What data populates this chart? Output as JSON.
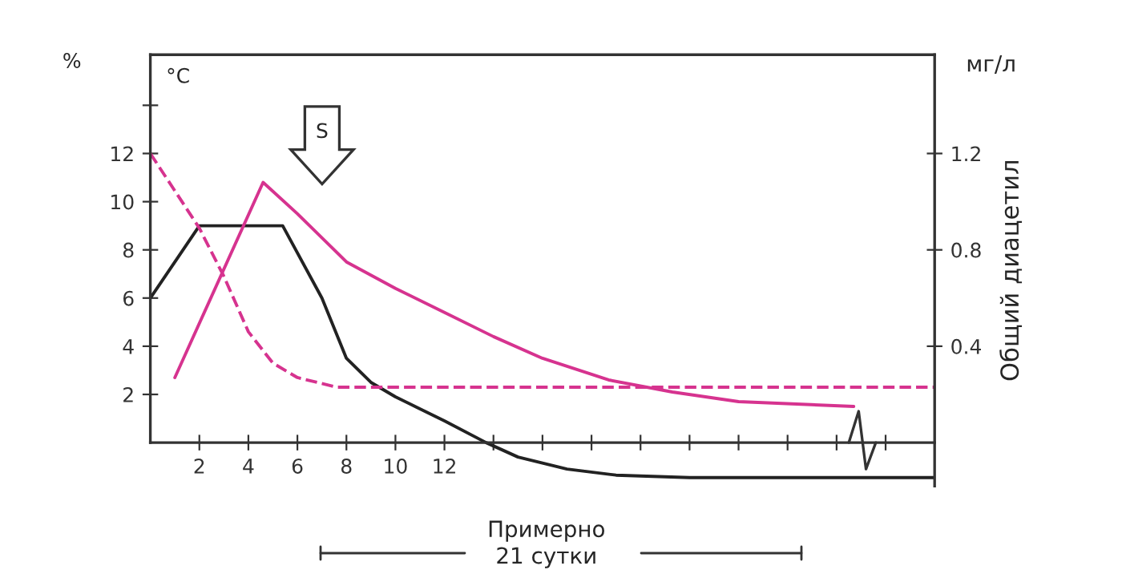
{
  "chart_data": {
    "type": "line",
    "ylabel": "%",
    "y2label": "Общий диацетил",
    "annotations": [
      "°C",
      "мг/л",
      "S",
      "Примерно\n21 сутки"
    ],
    "series": [
      {
        "x": [
          0,
          2,
          5.4,
          7,
          8,
          9,
          10,
          12,
          13.7,
          15,
          17,
          19,
          22,
          32
        ],
        "values": [
          6,
          9,
          9,
          6,
          3.5,
          2.5,
          1.9,
          0.9,
          0,
          -0.6,
          -1.1,
          -1.35,
          -1.45,
          -1.45
        ],
        "color": "#222222",
        "line_style": "solid"
      },
      {
        "x": [
          1,
          4.6,
          6,
          8,
          10,
          12,
          14,
          16,
          18.7,
          21.3,
          24,
          28.7
        ],
        "values": [
          2.7,
          10.8,
          9.5,
          7.5,
          6.4,
          5.4,
          4.4,
          3.5,
          2.6,
          2.1,
          1.7,
          1.5
        ],
        "color": "#d6338f",
        "line_style": "solid"
      },
      {
        "x": [
          0,
          2,
          3,
          4,
          5,
          6,
          7.6,
          32
        ],
        "values": [
          12,
          8.9,
          6.9,
          4.6,
          3.3,
          2.7,
          2.3,
          2.3
        ],
        "color": "#d6338f",
        "line_style": "dashed"
      }
    ],
    "xlim": [
      0,
      32
    ],
    "ylim": [
      -1.8,
      16.1
    ],
    "y2lim": [
      -0.18,
      1.61
    ],
    "xticks": [
      2,
      4,
      6,
      8,
      10,
      12,
      {
        "value": 14,
        "label": null
      },
      {
        "value": 16,
        "label": null
      },
      {
        "value": 18,
        "label": null
      },
      {
        "value": 20,
        "label": null
      },
      {
        "value": 22,
        "label": null
      },
      {
        "value": 24,
        "label": null
      },
      {
        "value": 26,
        "label": null
      },
      {
        "value": 28,
        "label": null
      },
      {
        "value": 30,
        "label": null
      }
    ],
    "yticks": [
      2,
      4,
      6,
      8,
      10,
      12,
      {
        "value": 14,
        "label": null
      }
    ],
    "y2ticks": [
      0.4,
      0.8,
      1.2
    ],
    "grid": false,
    "legend": false,
    "marker": "none"
  }
}
